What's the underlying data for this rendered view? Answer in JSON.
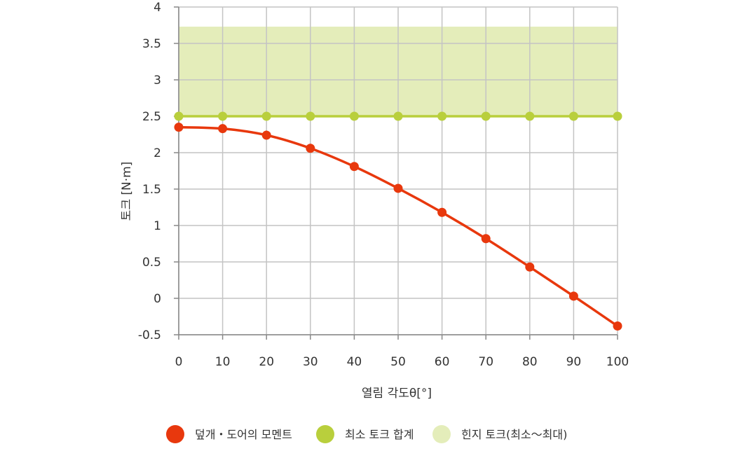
{
  "chart_data": {
    "type": "line",
    "xlabel": "열림 각도θ[°]",
    "ylabel": "토크 [N·m]",
    "xlim": [
      0,
      100
    ],
    "ylim": [
      -0.5,
      4
    ],
    "x_ticks": [
      0,
      10,
      20,
      30,
      40,
      50,
      60,
      70,
      80,
      90,
      100
    ],
    "y_ticks": [
      -0.5,
      0,
      0.5,
      1,
      1.5,
      2,
      2.5,
      3,
      3.5,
      4
    ],
    "y_tick_labels": [
      "-0.5",
      "0",
      "0.5",
      "1",
      "1.5",
      "2",
      "2.5",
      "3",
      "3.5",
      "4"
    ],
    "grid": true,
    "legend_position": "bottom",
    "band": {
      "name": "힌지 토크(최소～최대)",
      "y_min": 2.5,
      "y_max": 3.73,
      "color": "#e4edba"
    },
    "series": [
      {
        "name": "덮개・도어의 모멘트",
        "color": "#e8380d",
        "x": [
          0,
          10,
          20,
          30,
          40,
          50,
          60,
          70,
          80,
          90,
          100
        ],
        "y": [
          2.35,
          2.33,
          2.24,
          2.06,
          1.81,
          1.51,
          1.18,
          0.82,
          0.43,
          0.03,
          -0.38
        ]
      },
      {
        "name": "최소 토크 합계",
        "color": "#b9cf3c",
        "x": [
          0,
          10,
          20,
          30,
          40,
          50,
          60,
          70,
          80,
          90,
          100
        ],
        "y": [
          2.5,
          2.5,
          2.5,
          2.5,
          2.5,
          2.5,
          2.5,
          2.5,
          2.5,
          2.5,
          2.5
        ]
      }
    ]
  }
}
